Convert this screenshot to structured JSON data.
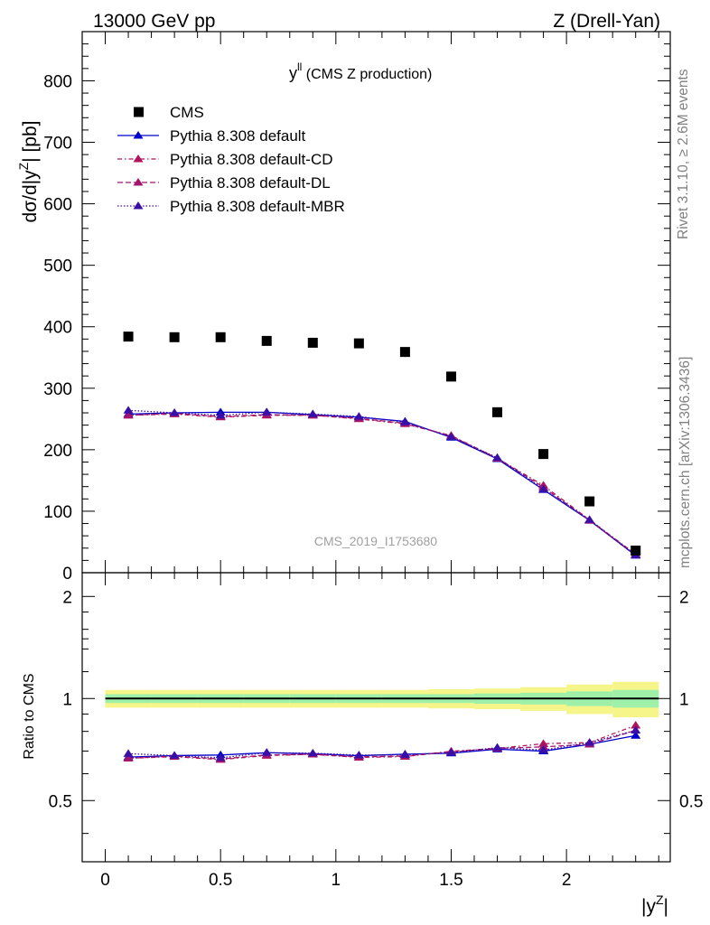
{
  "header": {
    "left": "13000 GeV pp",
    "right": "Z (Drell-Yan)"
  },
  "side_text": {
    "rivet": "Rivet 3.1.10, ≥ 2.6M events",
    "mcplots": "mcplots.cern.ch [arXiv:1306.3436]"
  },
  "chart_data": {
    "type": "scatter",
    "title_main": "y",
    "title_sup": "ll",
    "title_rest": " (CMS Z production)",
    "watermark": "CMS_2019_I1753680",
    "xlabel": "|y",
    "xlabel_sup": "Z",
    "xlabel_end": "|",
    "ylabel": "dσ/d|y",
    "ylabel_sup": "Z",
    "ylabel_end": "| [pb]",
    "ratio_ylabel": "Ratio to CMS",
    "xlim": [
      -0.1,
      2.45
    ],
    "ylim": [
      0,
      880
    ],
    "ratio_ylim": [
      0.33,
      2.35
    ],
    "log_ratio": true,
    "legend_position": "top-left",
    "x_ticks": [
      "0",
      "0.5",
      "1",
      "1.5",
      "2"
    ],
    "y_ticks": [
      "100",
      "200",
      "300",
      "400",
      "500",
      "600",
      "700",
      "800"
    ],
    "y_zero_label": "0",
    "ratio_ticks": [
      "0.5",
      "1",
      "2"
    ],
    "x": [
      0.1,
      0.3,
      0.5,
      0.7,
      0.9,
      1.1,
      1.3,
      1.5,
      1.7,
      1.9,
      2.1,
      2.3
    ],
    "data": {
      "name": "CMS",
      "values": [
        384,
        383,
        383,
        377,
        374,
        373,
        359,
        319,
        261,
        193,
        116,
        36
      ]
    },
    "ratio_band": {
      "x_edges": [
        0.0,
        0.2,
        0.4,
        0.6,
        0.8,
        1.0,
        1.2,
        1.4,
        1.6,
        1.8,
        2.0,
        2.2,
        2.4
      ],
      "inner": [
        0.03,
        0.03,
        0.03,
        0.03,
        0.03,
        0.03,
        0.03,
        0.03,
        0.035,
        0.04,
        0.05,
        0.06
      ],
      "outer": [
        0.06,
        0.06,
        0.06,
        0.06,
        0.06,
        0.06,
        0.06,
        0.065,
        0.07,
        0.08,
        0.1,
        0.12
      ]
    },
    "series": [
      {
        "name": "Pythia 8.308 default",
        "color": "#0000cc",
        "dash": "",
        "values": [
          258,
          260,
          261,
          261,
          257,
          253,
          246,
          220,
          185,
          135,
          85,
          28
        ]
      },
      {
        "name": "Pythia 8.308 default-CD",
        "color": "#b0135a",
        "dash": "5,3,1.5,3",
        "values": [
          256,
          258,
          253,
          256,
          256,
          250,
          242,
          223,
          186,
          142,
          86,
          30
        ]
      },
      {
        "name": "Pythia 8.308 default-DL",
        "color": "#a0146e",
        "dash": "6,3",
        "values": [
          256,
          259,
          254,
          257,
          256,
          251,
          243,
          222,
          186,
          139,
          85,
          29
        ]
      },
      {
        "name": "Pythia 8.308 default-MBR",
        "color": "#3a0fa8",
        "dash": "1.5,2",
        "values": [
          264,
          260,
          256,
          261,
          258,
          254,
          245,
          221,
          187,
          136,
          86,
          29
        ]
      }
    ]
  }
}
